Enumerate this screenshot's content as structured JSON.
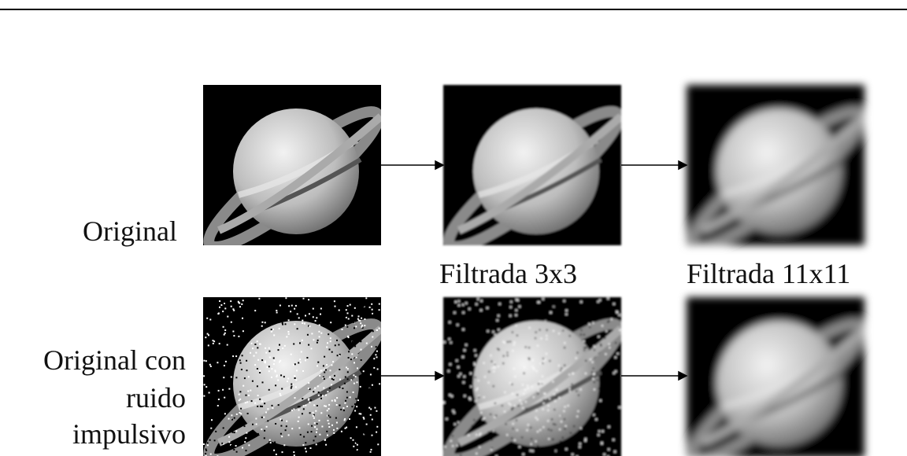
{
  "labels": {
    "original": "Original",
    "filtered_3x3": "Filtrada 3x3",
    "filtered_11x11": "Filtrada 11x11",
    "noisy": [
      "Original con",
      "ruido",
      "impulsivo"
    ]
  }
}
